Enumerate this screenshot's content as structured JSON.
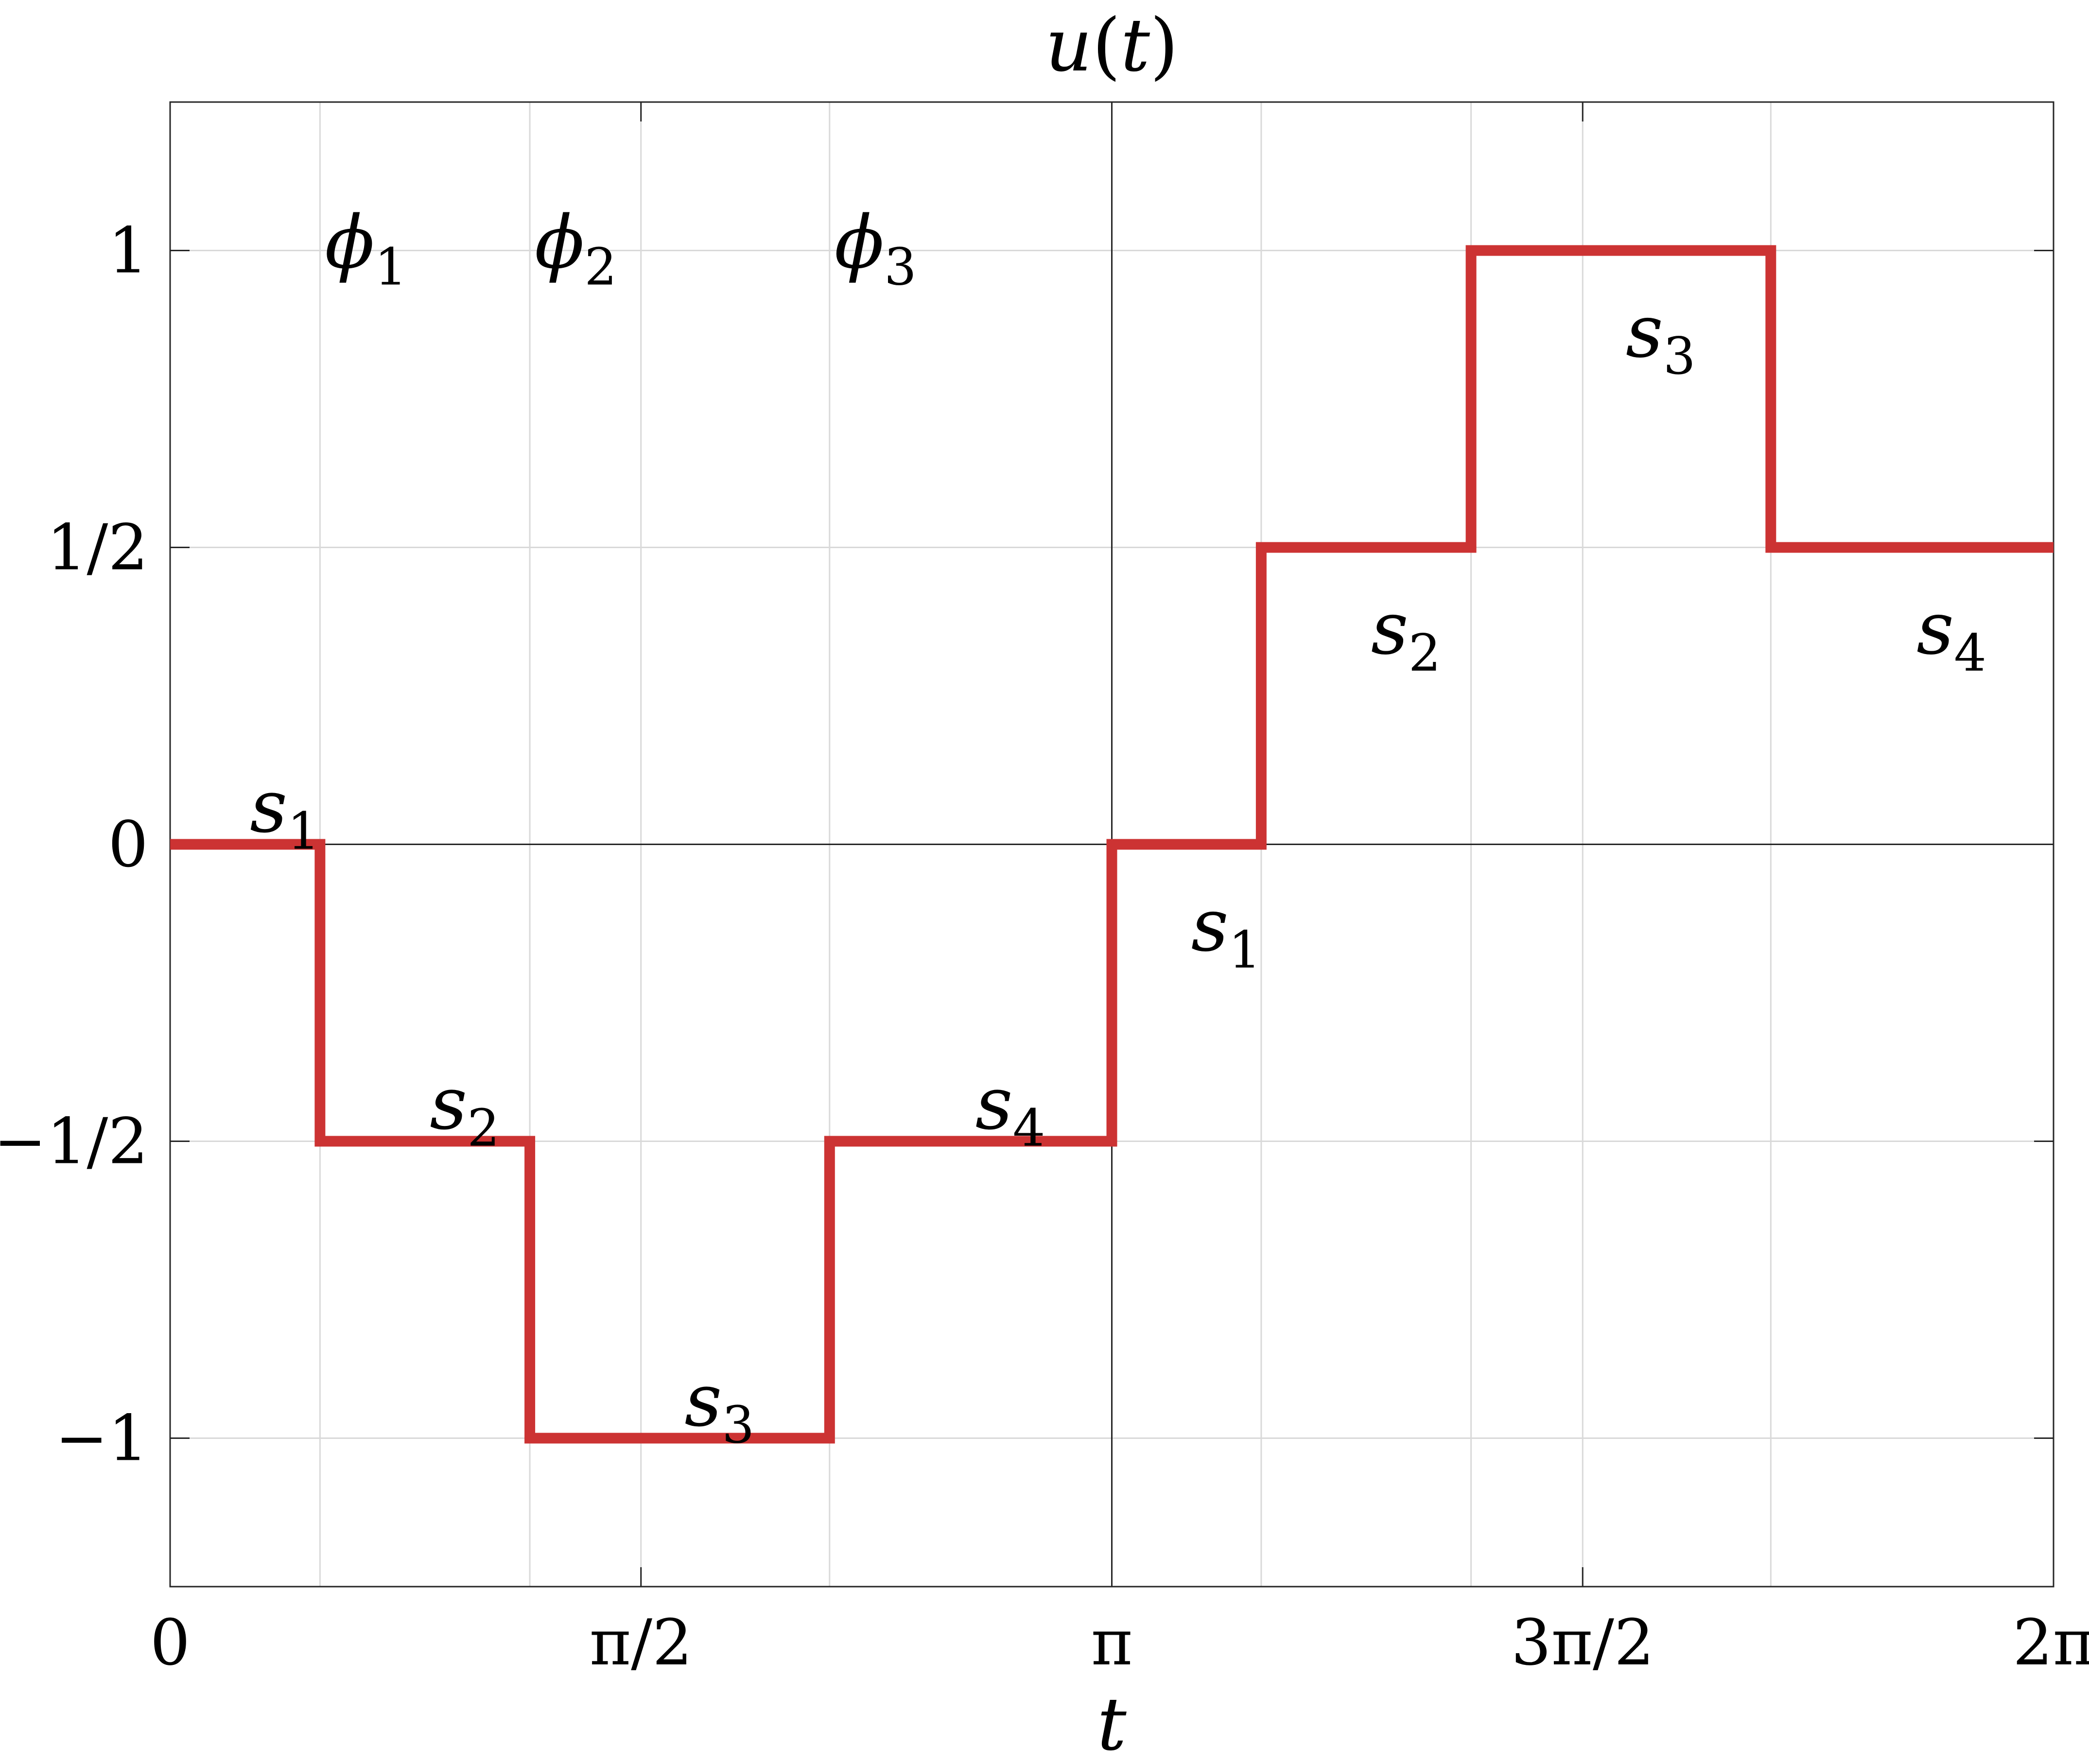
{
  "chart_data": {
    "type": "line",
    "title": "u(t)",
    "title_parts": {
      "fn": "u",
      "open": "(",
      "arg": "t",
      "close": ")"
    },
    "xlabel": "t",
    "ylabel": "",
    "xlim": [
      0,
      6.283185307
    ],
    "ylim": [
      -1.25,
      1.25
    ],
    "grid": true,
    "x_ticks": [
      {
        "value": 0,
        "label": "0"
      },
      {
        "value": 1.570796327,
        "label": "π/2"
      },
      {
        "value": 3.141592654,
        "label": "π"
      },
      {
        "value": 4.71238898,
        "label": "3π/2"
      },
      {
        "value": 6.283185307,
        "label": "2π"
      }
    ],
    "y_ticks": [
      {
        "value": -1,
        "label": "−1"
      },
      {
        "value": -0.5,
        "label": "−1/2"
      },
      {
        "value": 0,
        "label": "0"
      },
      {
        "value": 0.5,
        "label": "1/2"
      },
      {
        "value": 1,
        "label": "1"
      }
    ],
    "extra_vertical_gridlines": [
      0.5,
      1.2,
      2.2,
      3.64,
      4.34,
      5.34
    ],
    "reference_lines": {
      "x": [
        3.141592654
      ],
      "y": [
        0
      ]
    },
    "series": [
      {
        "color": "#cc3333",
        "shape": "step",
        "x": [
          0,
          0.5,
          0.5,
          1.2,
          1.2,
          2.2,
          2.2,
          3.141592654,
          3.141592654,
          3.64,
          3.64,
          4.34,
          4.34,
          5.34,
          5.34,
          6.283185307
        ],
        "y": [
          0,
          0,
          -0.5,
          -0.5,
          -1,
          -1,
          -0.5,
          -0.5,
          0,
          0,
          0.5,
          0.5,
          1,
          1,
          0.5,
          0.5
        ]
      }
    ],
    "annotations": [
      {
        "base": "ϕ",
        "sub": "1",
        "x": 0.5,
        "y": 1
      },
      {
        "base": "ϕ",
        "sub": "2",
        "x": 1.2,
        "y": 1
      },
      {
        "base": "ϕ",
        "sub": "3",
        "x": 2.2,
        "y": 1
      },
      {
        "base": "s",
        "sub": "1",
        "x": 0.25,
        "y": 0.05
      },
      {
        "base": "s",
        "sub": "2",
        "x": 0.85,
        "y": -0.45
      },
      {
        "base": "s",
        "sub": "3",
        "x": 1.7,
        "y": -0.95
      },
      {
        "base": "s",
        "sub": "4",
        "x": 2.67,
        "y": -0.45
      },
      {
        "base": "s",
        "sub": "1",
        "x": 3.39,
        "y": -0.15
      },
      {
        "base": "s",
        "sub": "2",
        "x": 3.99,
        "y": 0.35
      },
      {
        "base": "s",
        "sub": "3",
        "x": 4.84,
        "y": 0.85
      },
      {
        "base": "s",
        "sub": "4",
        "x": 5.81,
        "y": 0.35
      }
    ]
  }
}
